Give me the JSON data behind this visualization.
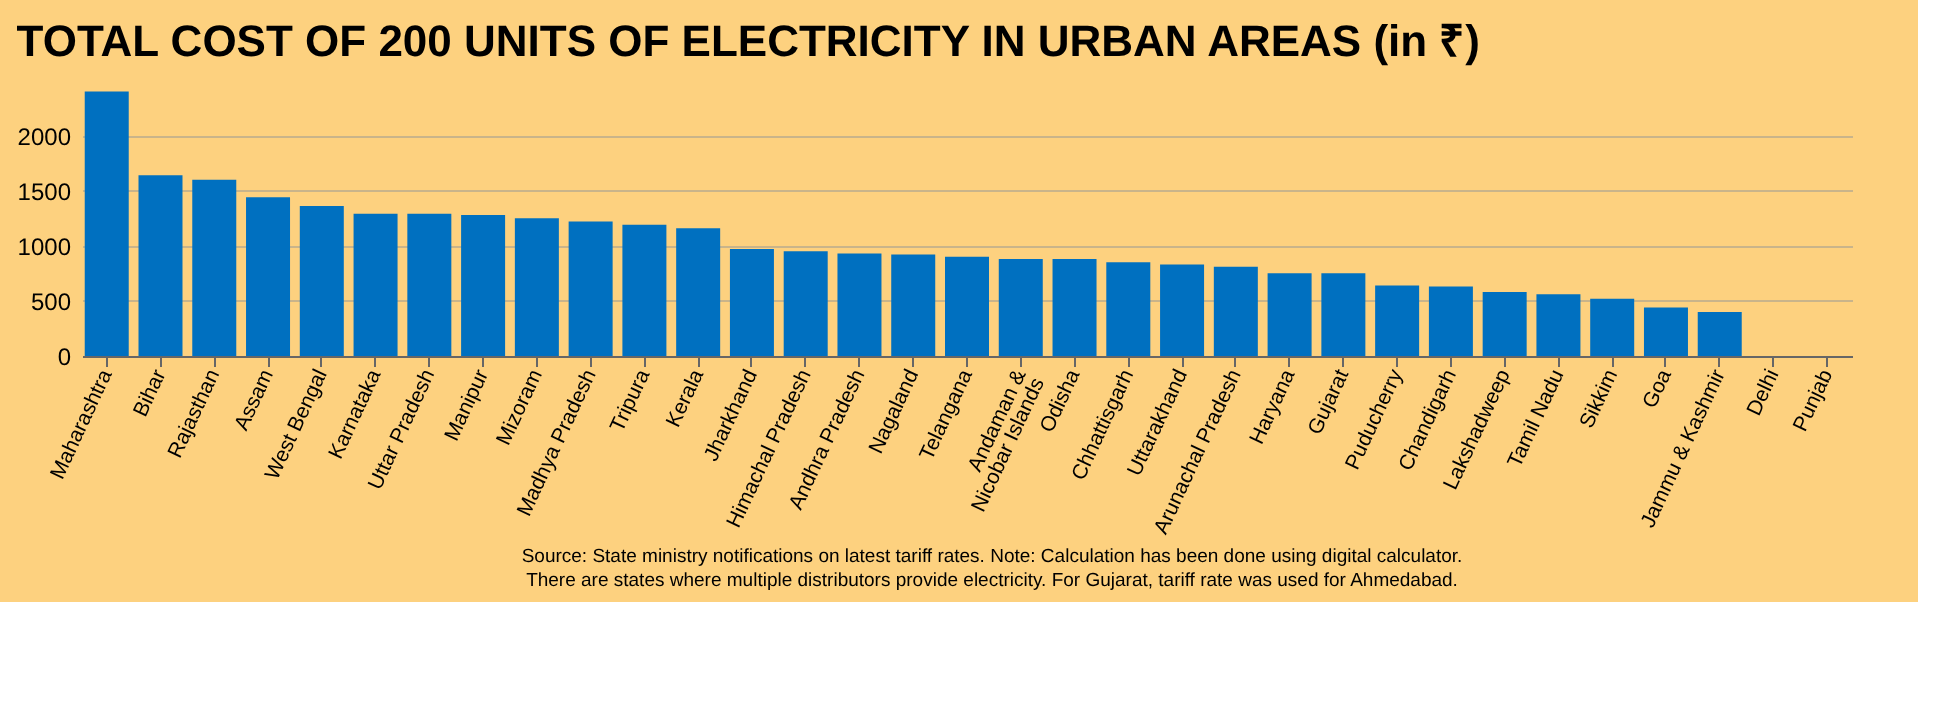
{
  "chart_data": {
    "type": "bar",
    "title": "TOTAL COST OF 200 UNITS OF ELECTRICITY IN URBAN AREAS (in ₹)",
    "categories": [
      "Maharashtra",
      "Bihar",
      "Rajasthan",
      "Assam",
      "West Bengal",
      "Karnataka",
      "Uttar Pradesh",
      "Manipur",
      "Mizoram",
      "Madhya Pradesh",
      "Tripura",
      "Kerala",
      "Jharkhand",
      "Himachal Pradesh",
      "Andhra Pradesh",
      "Nagaland",
      "Telangana",
      "Andaman & Nicobar Islands",
      "Odisha",
      "Chhattisgarh",
      "Uttarakhand",
      "Arunachal Pradesh",
      "Haryana",
      "Gujarat",
      "Puducherry",
      "Chandigarh",
      "Lakshadweep",
      "Tamil Nadu",
      "Sikkim",
      "Goa",
      "Jammu & Kashmir",
      "Delhi",
      "Punjab"
    ],
    "values": [
      2400,
      1640,
      1600,
      1440,
      1360,
      1290,
      1290,
      1280,
      1250,
      1220,
      1190,
      1160,
      970,
      950,
      930,
      920,
      900,
      880,
      880,
      850,
      830,
      810,
      750,
      750,
      640,
      630,
      580,
      560,
      520,
      440,
      400,
      null,
      null
    ],
    "color": "#0070c0",
    "ylim": [
      0,
      2450
    ],
    "yticks": [
      0,
      500,
      1000,
      1500,
      2000
    ],
    "grid": "y",
    "annotations": [
      "Source: State ministry notifications on latest tariff rates. Note: Calculation has been done using digital calculator. There are states where multiple distributors provide electricity. For Gujarat, tariff rate was used for Ahmedabad."
    ]
  }
}
